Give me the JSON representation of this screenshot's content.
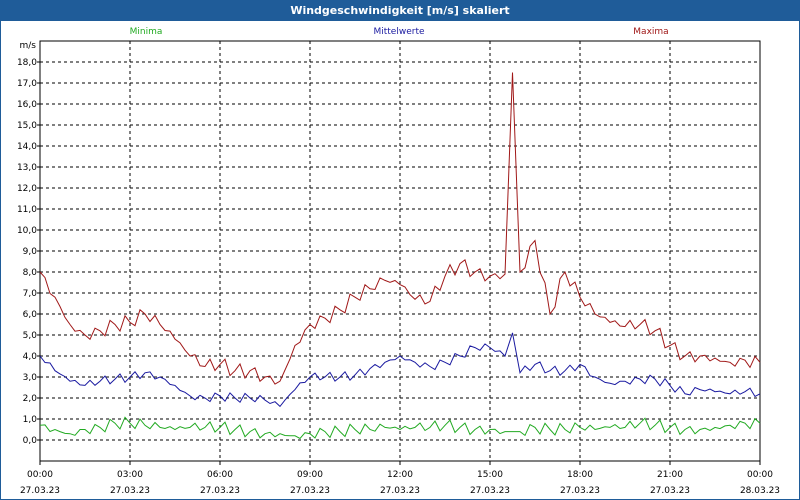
{
  "window": {
    "title": "Windgeschwindigkeit [m/s] skaliert"
  },
  "colors": {
    "min": "#22aa22",
    "mean": "#1a1aa0",
    "max": "#a01818",
    "titlebar": "#1f5c99"
  },
  "chart_data": {
    "type": "line",
    "title": "Windgeschwindigkeit [m/s] skaliert",
    "ylabel": "m/s",
    "ylim": [
      -1.0,
      19.0
    ],
    "yticks": [
      "0,0",
      "1,0",
      "2,0",
      "3,0",
      "4,0",
      "5,0",
      "6,0",
      "7,0",
      "8,0",
      "9,0",
      "10,0",
      "11,0",
      "12,0",
      "13,0",
      "14,0",
      "15,0",
      "16,0",
      "17,0",
      "18,0"
    ],
    "ytick_values": [
      0,
      1,
      2,
      3,
      4,
      5,
      6,
      7,
      8,
      9,
      10,
      11,
      12,
      13,
      14,
      15,
      16,
      17,
      18
    ],
    "xlim": [
      "27.03.23 00:00",
      "28.03.23 00:00"
    ],
    "xticks": [
      {
        "time": "00:00",
        "date": "27.03.23",
        "hour": 0
      },
      {
        "time": "03:00",
        "date": "27.03.23",
        "hour": 3
      },
      {
        "time": "06:00",
        "date": "27.03.23",
        "hour": 6
      },
      {
        "time": "09:00",
        "date": "27.03.23",
        "hour": 9
      },
      {
        "time": "12:00",
        "date": "27.03.23",
        "hour": 12
      },
      {
        "time": "15:00",
        "date": "27.03.23",
        "hour": 15
      },
      {
        "time": "18:00",
        "date": "27.03.23",
        "hour": 18
      },
      {
        "time": "21:00",
        "date": "27.03.23",
        "hour": 21
      },
      {
        "time": "00:00",
        "date": "28.03.23",
        "hour": 24
      }
    ],
    "grid": true,
    "legend": "top",
    "x_hours": [
      0,
      0.5,
      1,
      1.5,
      2,
      2.5,
      3,
      3.5,
      4,
      4.5,
      5,
      5.5,
      6,
      6.5,
      7,
      7.5,
      8,
      8.5,
      9,
      9.5,
      10,
      10.5,
      11,
      11.5,
      12,
      12.5,
      13,
      13.5,
      14,
      14.5,
      15,
      15.5,
      15.75,
      16,
      16.5,
      17,
      17.5,
      18,
      18.5,
      19,
      19.5,
      20,
      20.5,
      21,
      21.5,
      22,
      22.5,
      23,
      23.5,
      24
    ],
    "series": [
      {
        "name": "Minima",
        "color": "#22aa22",
        "values": [
          0.7,
          0.5,
          0.3,
          0.5,
          0.6,
          0.8,
          0.8,
          0.7,
          0.6,
          0.5,
          0.6,
          0.6,
          0.6,
          0.5,
          0.4,
          0.3,
          0.3,
          0.2,
          0.3,
          0.4,
          0.4,
          0.5,
          0.5,
          0.6,
          0.5,
          0.6,
          0.6,
          0.7,
          0.6,
          0.5,
          0.5,
          0.4,
          0.4,
          0.4,
          0.6,
          0.5,
          0.5,
          0.6,
          0.5,
          0.6,
          0.6,
          0.8,
          0.7,
          0.6,
          0.5,
          0.5,
          0.6,
          0.7,
          0.8,
          0.8
        ]
      },
      {
        "name": "Mittelwerte",
        "color": "#1a1aa0",
        "values": [
          4.0,
          3.3,
          2.8,
          2.6,
          2.8,
          2.9,
          3.0,
          3.2,
          3.0,
          2.6,
          2.1,
          2.0,
          2.1,
          2.0,
          2.0,
          1.9,
          1.6,
          2.4,
          3.0,
          3.0,
          3.0,
          3.1,
          3.4,
          3.7,
          4.0,
          3.7,
          3.5,
          3.7,
          4.0,
          4.4,
          4.4,
          4.0,
          5.1,
          3.2,
          3.6,
          3.3,
          3.3,
          3.6,
          3.0,
          2.7,
          2.8,
          2.9,
          2.9,
          2.6,
          2.2,
          2.4,
          2.3,
          2.2,
          2.3,
          2.2
        ]
      },
      {
        "name": "Maxima",
        "color": "#a01818",
        "values": [
          8.0,
          6.8,
          5.5,
          5.0,
          5.2,
          5.5,
          5.6,
          6.0,
          5.5,
          4.8,
          4.0,
          3.5,
          3.6,
          3.3,
          3.3,
          3.0,
          2.8,
          4.5,
          5.5,
          5.8,
          6.2,
          6.8,
          7.2,
          7.6,
          7.4,
          6.7,
          6.6,
          7.8,
          8.4,
          8.0,
          7.8,
          7.9,
          17.5,
          8.0,
          9.5,
          6.0,
          8.0,
          6.8,
          6.0,
          5.6,
          5.4,
          5.5,
          5.2,
          4.5,
          4.0,
          4.0,
          3.9,
          3.7,
          3.8,
          3.7
        ]
      }
    ]
  }
}
